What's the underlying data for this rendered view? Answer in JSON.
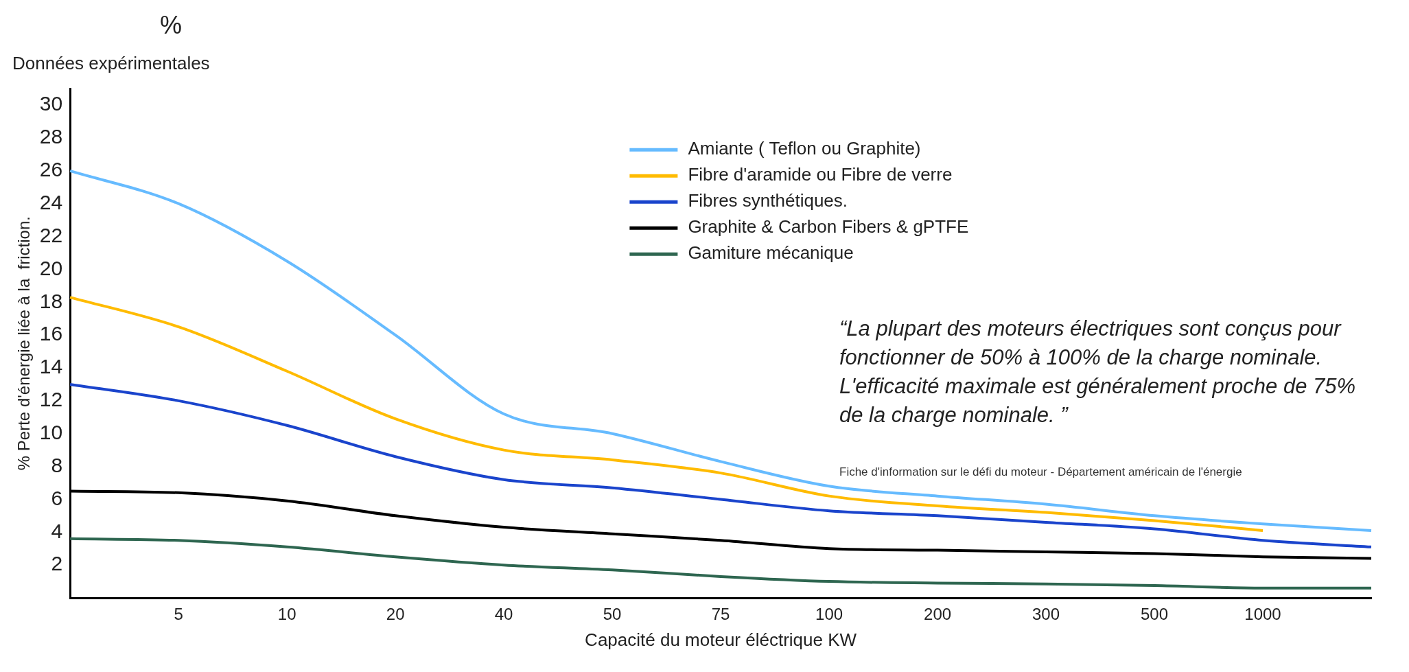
{
  "chart_data": {
    "type": "line",
    "title": "Données expérimentales",
    "xlabel": "Capacité du moteur éléctrique KW",
    "ylabel": "% Perte d'énergie liée à la  friction.",
    "categories": [
      null,
      "5",
      "10",
      "20",
      "40",
      "50",
      "75",
      "100",
      "200",
      "300",
      "500",
      "1000",
      null
    ],
    "series": [
      {
        "name": "Amiante ( Teflon ou Graphite)",
        "color": "#66bbff",
        "values": [
          26,
          24,
          20.5,
          16,
          11.2,
          10,
          8.3,
          6.8,
          6.2,
          5.7,
          5,
          4.5,
          4.1
        ]
      },
      {
        "name": "Fibre d'aramide ou Fibre de verre",
        "color": "#ffbb00",
        "values": [
          18.3,
          16.5,
          13.8,
          10.9,
          9,
          8.4,
          7.6,
          6.2,
          5.6,
          5.2,
          4.7,
          4.1,
          null
        ]
      },
      {
        "name": "Fibres synthétiques.",
        "color": "#1a44cc",
        "values": [
          13,
          12,
          10.5,
          8.6,
          7.2,
          6.7,
          6,
          5.3,
          5,
          4.6,
          4.2,
          3.5,
          3.1
        ]
      },
      {
        "name": "Graphite & Carbon Fibers & gPTFE",
        "color": "#000000",
        "values": [
          6.5,
          6.4,
          5.9,
          5,
          4.3,
          3.9,
          3.5,
          3,
          2.9,
          2.8,
          2.7,
          2.5,
          2.4
        ]
      },
      {
        "name": "Gamiture mécanique",
        "color": "#2e6650",
        "values": [
          3.6,
          3.5,
          3.1,
          2.5,
          2,
          1.7,
          1.3,
          1,
          0.9,
          0.85,
          0.75,
          0.6,
          0.6
        ]
      }
    ],
    "ylim": [
      0,
      31
    ],
    "yticks": [
      2,
      4,
      6,
      8,
      10,
      12,
      14,
      16,
      18,
      20,
      22,
      24,
      26,
      28,
      30
    ],
    "grid": false,
    "legend": "top right",
    "marker": "none",
    "line_style": "solid",
    "annotations": [
      "%",
      "“La plupart des moteurs électriques sont conçus pour fonctionner de 50% à 100% de la charge nominale. L'efficacité maximale est généralement proche de 75% de la charge nominale. ”",
      "Fiche d'information sur le défi du moteur - Département américain de l'énergie"
    ]
  }
}
